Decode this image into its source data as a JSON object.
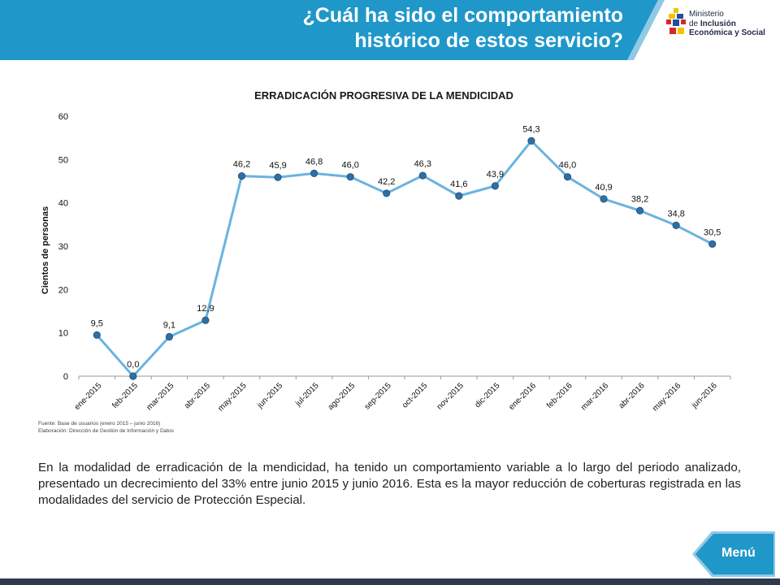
{
  "header": {
    "title_line1": "¿Cuál ha sido el comportamiento",
    "title_line2": "histórico de estos servicio?",
    "bg_color": "#1f97c9"
  },
  "logo": {
    "line1": "Ministerio",
    "line2_prefix": "de ",
    "line2_bold": "Inclusión",
    "line3": "Económica y Social"
  },
  "chart_data": {
    "type": "line",
    "title": "ERRADICACIÓN PROGRESIVA DE LA MENDICIDAD",
    "ylabel": "Cientos de personas",
    "xlabel": "",
    "ylim": [
      0,
      60
    ],
    "yticks": [
      "0",
      "10",
      "20",
      "30",
      "40",
      "50",
      "60"
    ],
    "categories": [
      "ene-2015",
      "feb-2015",
      "mar-2015",
      "abr-2015",
      "may-2015",
      "jun-2015",
      "jul-2015",
      "ago-2015",
      "sep-2015",
      "oct-2015",
      "nov-2015",
      "dic-2015",
      "ene-2016",
      "feb-2016",
      "mar-2016",
      "abr-2016",
      "may-2016",
      "jun-2016"
    ],
    "values": [
      9.5,
      0.0,
      9.1,
      12.9,
      46.2,
      45.9,
      46.8,
      46.0,
      42.2,
      46.3,
      41.6,
      43.9,
      54.3,
      46.0,
      40.9,
      38.2,
      34.8,
      30.5
    ],
    "data_labels": [
      "9,5",
      "0,0",
      "9,1",
      "12,9",
      "46,2",
      "45,9",
      "46,8",
      "46,0",
      "42,2",
      "46,3",
      "41,6",
      "43,9",
      "54,3",
      "46,0",
      "40,9",
      "38,2",
      "34,8",
      "30,5"
    ],
    "grid": false,
    "line_color": "#6ab3df",
    "marker_color": "#2f6fa3"
  },
  "source": {
    "line1": "Fuente: Base de usuarios (enero 2015 – junio 2016)",
    "line2": "Elaboración: Dirección de Gestión de Información y Datos"
  },
  "body": {
    "text": "En la modalidad de erradicación  de la mendicidad, ha tenido un comportamiento variable  a lo largo del periodo analizado, presentado un decrecimiento del 33% entre junio 2015 y junio 2016. Esta es la mayor reducción de coberturas registrada en las modalidades del servicio de Protección Especial."
  },
  "menu": {
    "label": "Menú",
    "color": "#1f97c9"
  }
}
